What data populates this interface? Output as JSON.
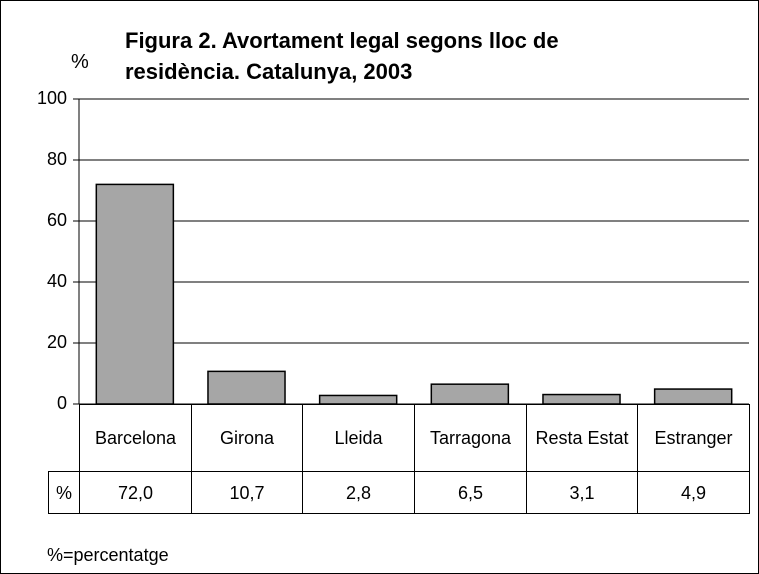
{
  "chart_data": {
    "type": "bar",
    "title": "Figura 2. Avortament legal segons lloc de residència. Catalunya,  2003",
    "y_label": "%",
    "categories": [
      "Barcelona",
      "Girona",
      "Lleida",
      "Tarragona",
      "Resta Estat",
      "Estranger"
    ],
    "values": [
      72.0,
      10.7,
      2.8,
      6.5,
      3.1,
      4.9
    ],
    "value_labels": [
      "72,0",
      "10,7",
      "2,8",
      "6,5",
      "3,1",
      "4,9"
    ],
    "table_row_label": "%",
    "color": "#a6a6a6",
    "ylim": [
      0,
      100
    ],
    "yticks": [
      0,
      20,
      40,
      60,
      80,
      100
    ],
    "grid": true,
    "note": "%=percentatge"
  }
}
